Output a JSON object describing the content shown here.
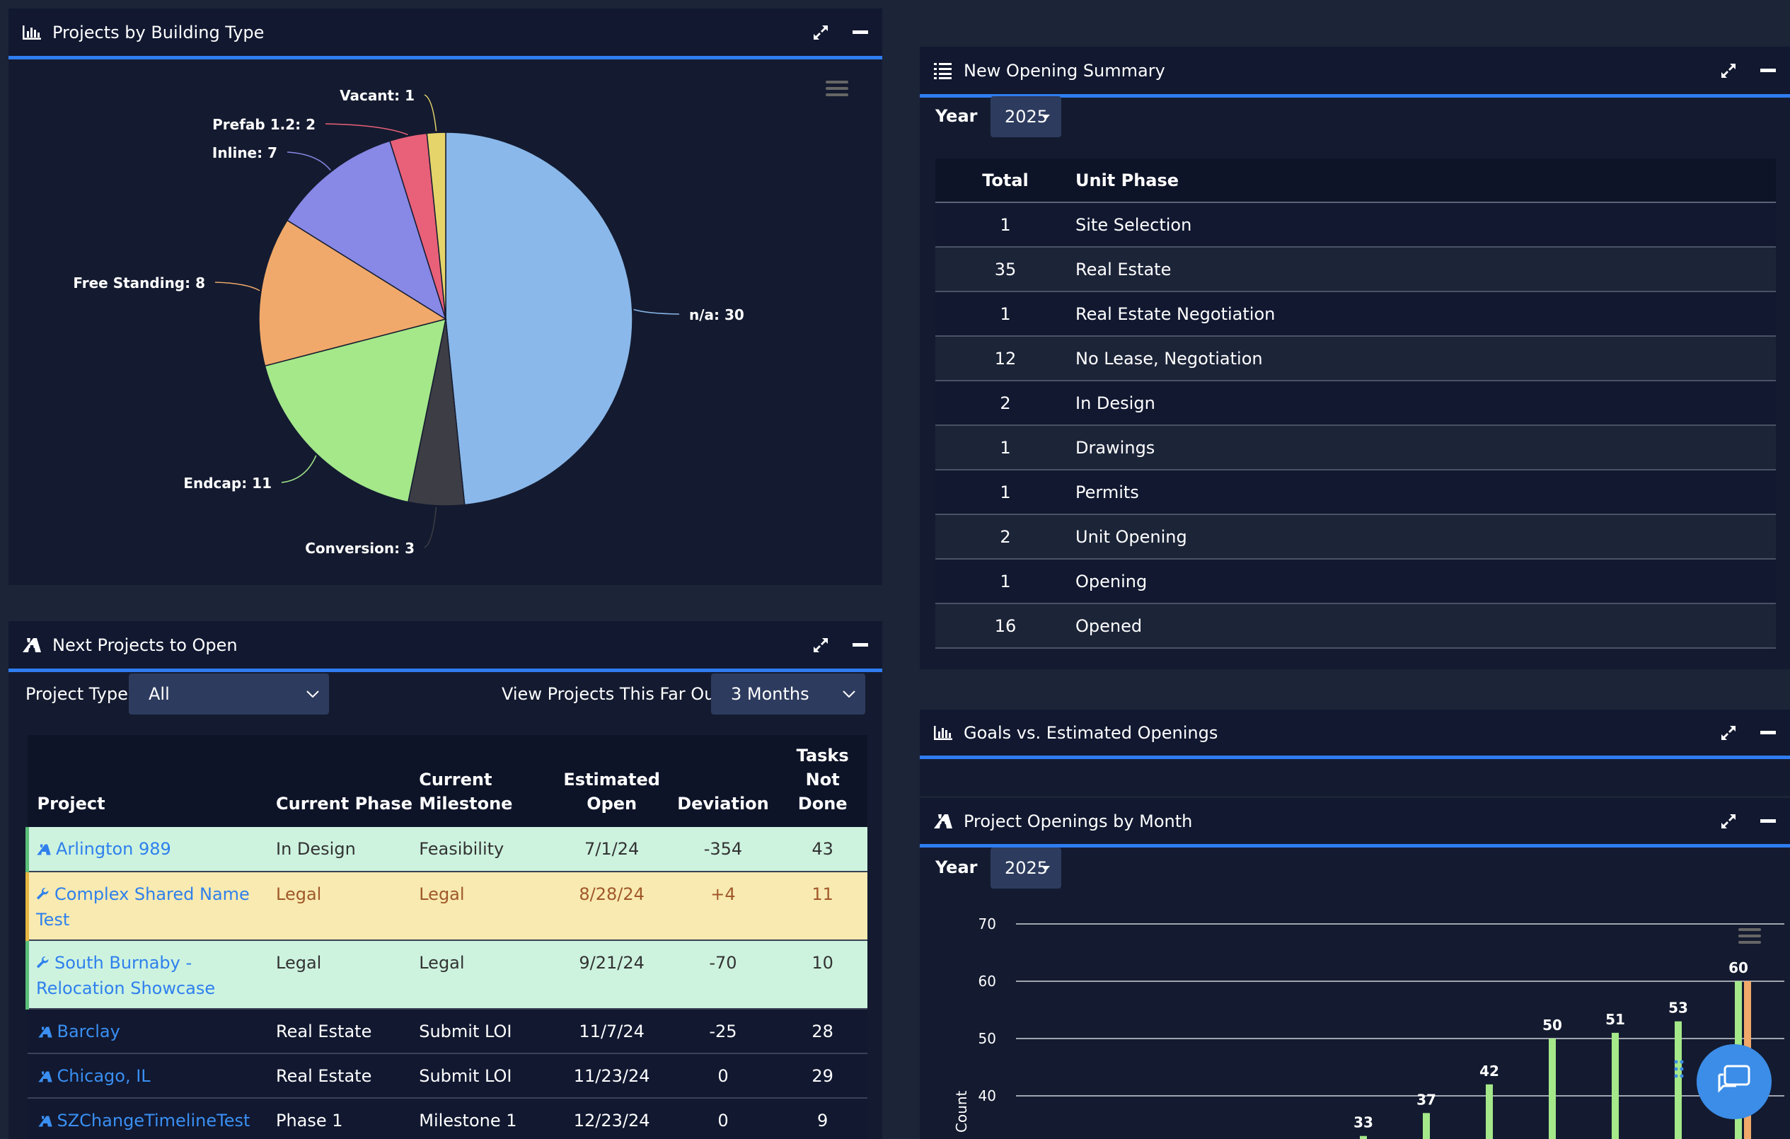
{
  "building_panel": {
    "title": "Projects by Building Type",
    "chart_data": {
      "type": "pie",
      "slices": [
        {
          "label": "n/a",
          "value": 30,
          "color": "#8ab8ea"
        },
        {
          "label": "Conversion",
          "value": 3,
          "color": "#3d3d45"
        },
        {
          "label": "Endcap",
          "value": 11,
          "color": "#a4e88a"
        },
        {
          "label": "Free Standing",
          "value": 8,
          "color": "#f0a96a"
        },
        {
          "label": "Inline",
          "value": 7,
          "color": "#8888e6"
        },
        {
          "label": "Prefab 1.2",
          "value": 2,
          "color": "#e96079"
        },
        {
          "label": "Vacant",
          "value": 1,
          "color": "#e4d46a"
        }
      ],
      "labels": [
        "n/a: 30",
        "Conversion: 3",
        "Endcap: 11",
        "Free Standing: 8",
        "Inline: 7",
        "Prefab 1.2: 2",
        "Vacant: 1"
      ]
    }
  },
  "summary_panel": {
    "title": "New Opening Summary",
    "year_label": "Year",
    "year_value": "2025",
    "columns": [
      "Total",
      "Unit Phase"
    ],
    "rows": [
      {
        "total": "1",
        "phase": "Site Selection"
      },
      {
        "total": "35",
        "phase": "Real Estate"
      },
      {
        "total": "1",
        "phase": "Real Estate Negotiation"
      },
      {
        "total": "12",
        "phase": "No Lease, Negotiation"
      },
      {
        "total": "2",
        "phase": "In Design"
      },
      {
        "total": "1",
        "phase": "Drawings"
      },
      {
        "total": "1",
        "phase": "Permits"
      },
      {
        "total": "2",
        "phase": "Unit Opening"
      },
      {
        "total": "1",
        "phase": "Opening"
      },
      {
        "total": "16",
        "phase": "Opened"
      }
    ]
  },
  "next_panel": {
    "title": "Next Projects to Open",
    "project_type_label": "Project Type:",
    "project_type_value": "All",
    "far_out_label": "View Projects This Far Out:",
    "far_out_value": "3 Months",
    "columns": {
      "project": "Project",
      "phase": "Current Phase",
      "milestone_1": "Current",
      "milestone_2": "Milestone",
      "open_1": "Estimated",
      "open_2": "Open",
      "deviation": "Deviation",
      "tasks_1": "Tasks",
      "tasks_2": "Not",
      "tasks_3": "Done"
    },
    "rows": [
      {
        "project": "Arlington 989",
        "phase": "In Design",
        "milestone": "Feasibility",
        "open": "7/1/24",
        "deviation": "-354",
        "tasks": "43",
        "style": "green",
        "icon": "road-icon"
      },
      {
        "project_1": "Complex Shared Name",
        "project_2": "Test",
        "phase": "Legal",
        "milestone": "Legal",
        "open": "8/28/24",
        "deviation": "+4",
        "tasks": "11",
        "style": "yellow",
        "icon": "wrench-icon"
      },
      {
        "project_1": "South Burnaby -",
        "project_2": "Relocation Showcase",
        "phase": "Legal",
        "milestone": "Legal",
        "open": "9/21/24",
        "deviation": "-70",
        "tasks": "10",
        "style": "green",
        "icon": "wrench-icon"
      },
      {
        "project": "Barclay",
        "phase": "Real Estate",
        "milestone": "Submit LOI",
        "open": "11/7/24",
        "deviation": "-25",
        "tasks": "28",
        "style": "dark",
        "icon": "road-icon"
      },
      {
        "project": "Chicago, IL",
        "phase": "Real Estate",
        "milestone": "Submit LOI",
        "open": "11/23/24",
        "deviation": "0",
        "tasks": "29",
        "style": "dark",
        "icon": "road-icon"
      },
      {
        "project": "SZChangeTimelineTest",
        "phase": "Phase 1",
        "milestone": "Milestone 1",
        "open": "12/23/24",
        "deviation": "0",
        "tasks": "9",
        "style": "dark",
        "icon": "road-icon"
      }
    ]
  },
  "goals_panel": {
    "title": "Goals vs. Estimated Openings"
  },
  "openings_panel": {
    "title": "Project Openings by Month",
    "year_label": "Year",
    "year_value": "2025",
    "chart_data": {
      "type": "bar",
      "ylabel": "Count",
      "y_ticks": [
        "70",
        "60",
        "50",
        "40"
      ],
      "ylim_visible": [
        40,
        70
      ],
      "series": [
        {
          "values": [
            33,
            37,
            42,
            50,
            51,
            53,
            60
          ],
          "color": "#a4e88a"
        }
      ],
      "extra_bar": {
        "value": 60,
        "color": "#f0a96a"
      },
      "data_labels": [
        "33",
        "37",
        "42",
        "50",
        "51",
        "53",
        "60"
      ]
    }
  }
}
